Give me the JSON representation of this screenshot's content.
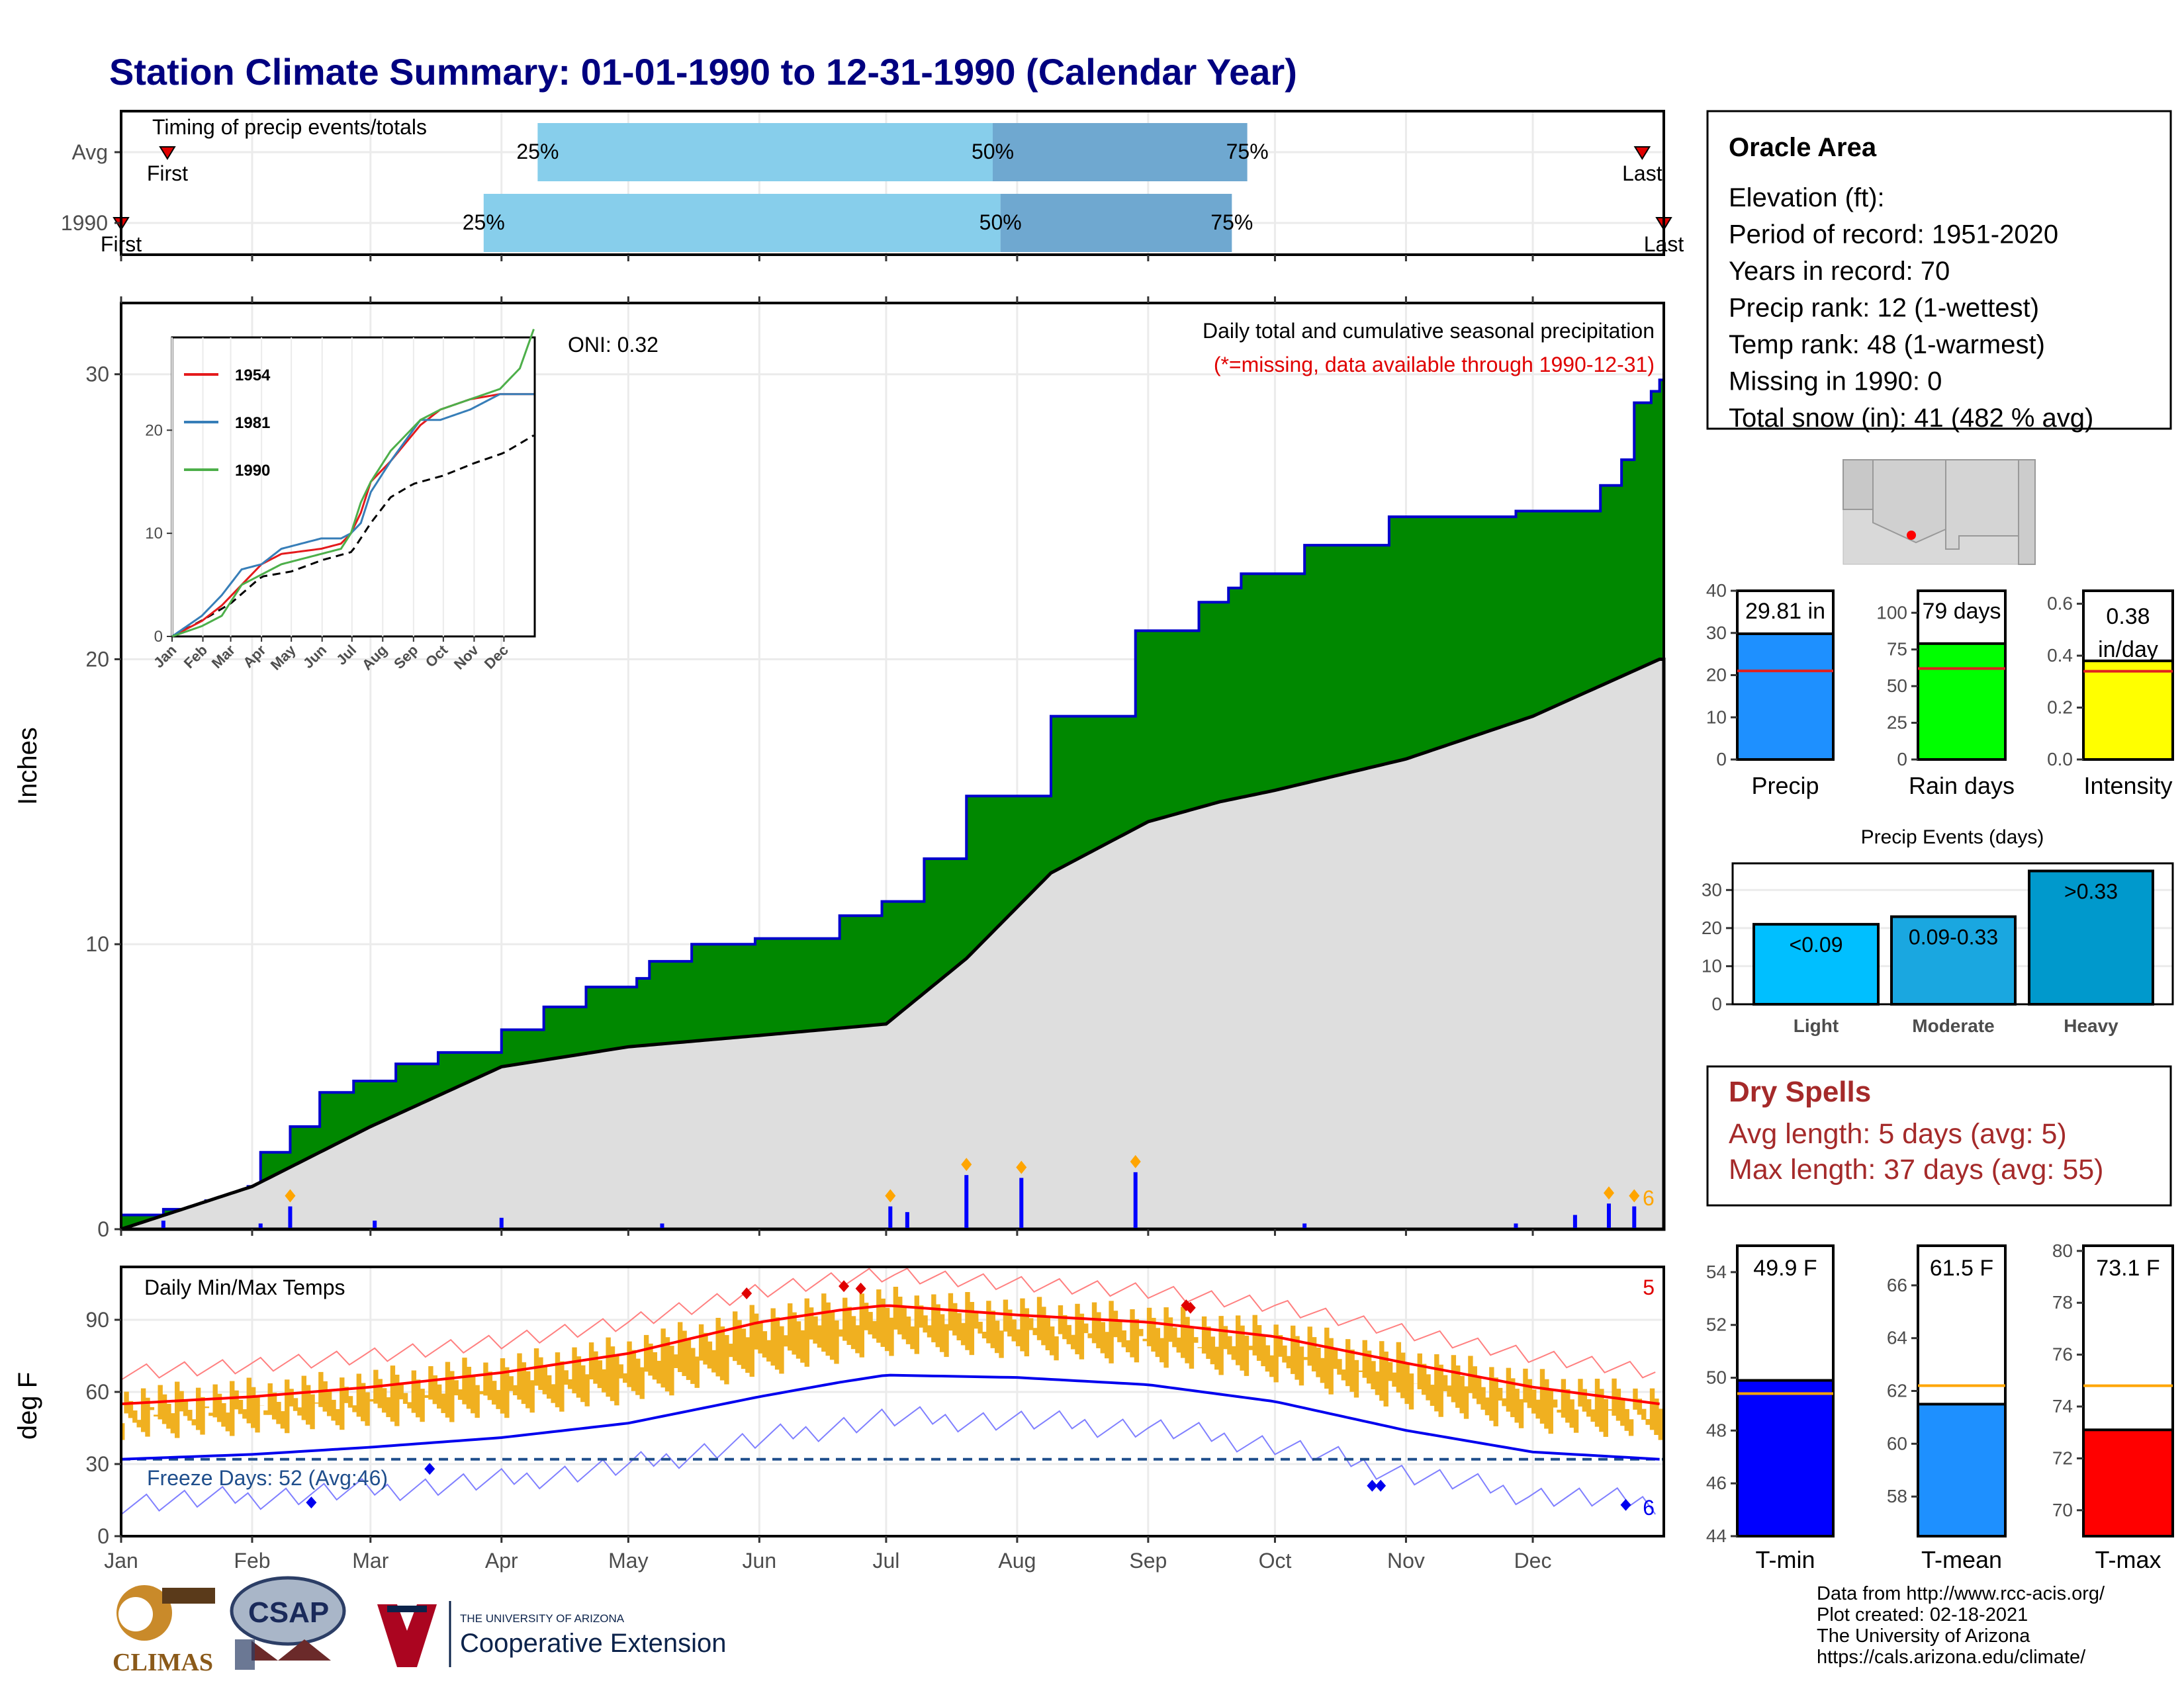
{
  "title": "Station Climate Summary: 01-01-1990 to 12-31-1990 (Calendar Year)",
  "months": [
    "Jan",
    "Feb",
    "Mar",
    "Apr",
    "May",
    "Jun",
    "Jul",
    "Aug",
    "Sep",
    "Oct",
    "Nov",
    "Dec"
  ],
  "timing": {
    "label": "Timing of precip events/totals",
    "rows": [
      {
        "name": "Avg",
        "first": "First",
        "last": "Last",
        "p25": "25%",
        "p50": "50%",
        "p75": "75%",
        "v25": 0.27,
        "v50": 0.565,
        "v75": 0.73,
        "vfirst": 0.03,
        "vlast": 0.986
      },
      {
        "name": "1990",
        "first": "First",
        "last": "Last",
        "p25": "25%",
        "p50": "50%",
        "p75": "75%",
        "v25": 0.235,
        "v50": 0.57,
        "v75": 0.72,
        "vfirst": 0.0,
        "vlast": 1.0
      }
    ]
  },
  "info": {
    "station": "Oracle Area",
    "lines": [
      "Elevation (ft):",
      "Period of record: 1951-2020",
      "Years in record: 70",
      "Precip rank: 12 (1-wettest)",
      "Temp rank: 48 (1-warmest)",
      "Missing in 1990: 0",
      "Total snow (in): 41 (482 % avg)"
    ]
  },
  "main_chart": {
    "ylabel": "Inches",
    "annotation": "Daily total and cumulative seasonal precipitation",
    "missing_note": "(*=missing, data available through 1990-12-31)",
    "oni": "ONI: 0.32",
    "ylim": [
      0,
      32.5
    ],
    "yticks": [
      "0",
      "10",
      "20",
      "30"
    ],
    "corner_count": "6",
    "chart_data": {
      "type": "area",
      "cumulative_1990": {
        "day": [
          0,
          10,
          20,
          30,
          33,
          40,
          47,
          55,
          65,
          75,
          90,
          100,
          110,
          122,
          125,
          135,
          150,
          170,
          180,
          190,
          200,
          220,
          240,
          255,
          262,
          265,
          280,
          300,
          330,
          350,
          355,
          358,
          362,
          364
        ],
        "value": [
          0.5,
          0.7,
          1.0,
          1.5,
          2.7,
          3.6,
          4.8,
          5.2,
          5.8,
          6.2,
          7.0,
          7.8,
          8.5,
          8.8,
          9.4,
          10.0,
          10.2,
          11.0,
          11.5,
          13.0,
          15.2,
          18.0,
          21.0,
          22.0,
          22.5,
          23.0,
          24.0,
          25.0,
          25.2,
          26.1,
          27.0,
          29.0,
          29.4,
          29.8
        ]
      },
      "average_cumulative": {
        "day": [
          0,
          31,
          59,
          90,
          120,
          151,
          181,
          200,
          220,
          243,
          260,
          273,
          304,
          334,
          364
        ],
        "value": [
          0.0,
          1.5,
          3.6,
          5.7,
          6.4,
          6.8,
          7.2,
          9.5,
          12.5,
          14.3,
          15.0,
          15.4,
          16.5,
          18.0,
          20.0
        ]
      },
      "daily_bars": [
        {
          "day": 10,
          "v": 0.3
        },
        {
          "day": 33,
          "v": 0.2
        },
        {
          "day": 40,
          "v": 0.8
        },
        {
          "day": 60,
          "v": 0.3
        },
        {
          "day": 90,
          "v": 0.4
        },
        {
          "day": 128,
          "v": 0.2
        },
        {
          "day": 182,
          "v": 0.8
        },
        {
          "day": 186,
          "v": 0.6
        },
        {
          "day": 200,
          "v": 1.9
        },
        {
          "day": 213,
          "v": 1.8
        },
        {
          "day": 240,
          "v": 2.0
        },
        {
          "day": 280,
          "v": 0.2
        },
        {
          "day": 330,
          "v": 0.2
        },
        {
          "day": 344,
          "v": 0.5
        },
        {
          "day": 352,
          "v": 0.9
        },
        {
          "day": 358,
          "v": 0.8
        }
      ]
    }
  },
  "inset": {
    "legend": [
      "1954",
      "1981",
      "1990"
    ],
    "colors": [
      "#e41a1c",
      "#377eb8",
      "#4daf4a"
    ],
    "yticks": [
      "0",
      "10",
      "20"
    ],
    "months": [
      "Jan",
      "Feb",
      "Mar",
      "Apr",
      "May",
      "Jun",
      "Jul",
      "Aug",
      "Sep",
      "Oct",
      "Nov",
      "Dec"
    ]
  },
  "temps": {
    "label": "Daily Min/Max Temps",
    "ylabel": "deg F",
    "freeze": "Freeze Days: 52 (Avg:46)",
    "count_hot": "5",
    "count_cold": "6",
    "yticks": [
      "0",
      "30",
      "60",
      "90"
    ],
    "ylim": [
      0,
      112
    ],
    "chart_data": {
      "type": "line",
      "avg_max": {
        "day": [
          0,
          31,
          59,
          90,
          120,
          151,
          170,
          181,
          212,
          243,
          273,
          304,
          334,
          364
        ],
        "value": [
          55,
          58,
          62,
          68,
          76,
          89,
          94,
          96,
          92,
          89,
          83,
          72,
          62,
          55
        ]
      },
      "avg_min": {
        "day": [
          0,
          31,
          59,
          90,
          120,
          151,
          170,
          181,
          212,
          243,
          273,
          304,
          334,
          364
        ],
        "value": [
          32,
          34,
          37,
          41,
          47,
          58,
          64,
          67,
          66,
          63,
          56,
          44,
          35,
          32
        ]
      },
      "freeze_line": 32
    }
  },
  "bars_top": [
    {
      "title": "Precip",
      "value_label": "29.81 in",
      "value": 29.81,
      "avg": 21,
      "ymax": 40,
      "yticks": [
        "0",
        "10",
        "20",
        "30",
        "40"
      ],
      "color": "#1e90ff"
    },
    {
      "title": "Rain days",
      "value_label": "79 days",
      "value": 79,
      "avg": 62,
      "ymax": 115,
      "yticks": [
        "0",
        "25",
        "50",
        "75",
        "100"
      ],
      "color": "#00ff00"
    },
    {
      "title": "Intensity",
      "value_label": "0.38 in/day",
      "value": 0.38,
      "avg": 0.34,
      "ymax": 0.65,
      "yticks": [
        "0.0",
        "0.2",
        "0.4",
        "0.6"
      ],
      "color": "#ffff00"
    }
  ],
  "events": {
    "title": "Precip Events (days)",
    "chart_data": {
      "type": "bar",
      "categories": [
        "Light",
        "Moderate",
        "Heavy"
      ],
      "labels": [
        "<0.09",
        "0.09-0.33",
        ">0.33"
      ],
      "values": [
        21,
        23,
        35
      ],
      "ylim": [
        0,
        37
      ]
    },
    "yticks": [
      "0",
      "10",
      "20",
      "30"
    ],
    "colors": [
      "#00bfff",
      "#1aa7e0",
      "#0099cc"
    ]
  },
  "dry": {
    "title": "Dry Spells",
    "avg": "Avg length: 5 days (avg: 5)",
    "max": "Max length: 37 days (avg: 55)"
  },
  "bars_temp": [
    {
      "title": "T-min",
      "value_label": "49.9 F",
      "value": 49.9,
      "avg": 49.4,
      "ymin": 44,
      "ymax": 55,
      "yticks": [
        "44",
        "46",
        "48",
        "50",
        "52",
        "54"
      ],
      "color": "#0000ff"
    },
    {
      "title": "T-mean",
      "value_label": "61.5 F",
      "value": 61.5,
      "avg": 62.2,
      "ymin": 56.5,
      "ymax": 67.5,
      "yticks": [
        "58",
        "60",
        "62",
        "64",
        "66"
      ],
      "color": "#1e90ff"
    },
    {
      "title": "T-max",
      "value_label": "73.1 F",
      "value": 73.1,
      "avg": 74.8,
      "ymin": 69,
      "ymax": 80.2,
      "yticks": [
        "70",
        "72",
        "74",
        "76",
        "78",
        "80"
      ],
      "color": "#ff0000"
    }
  ],
  "footer": {
    "lines": [
      "Data from http://www.rcc-acis.org/",
      "Plot created: 02-18-2021",
      "The University of Arizona",
      "https://cals.arizona.edu/climate/"
    ],
    "logo1": "CLIMAS",
    "logo2": "CSAP",
    "logo3_small": "THE UNIVERSITY OF ARIZONA",
    "logo3_big": "Cooperative Extension"
  }
}
